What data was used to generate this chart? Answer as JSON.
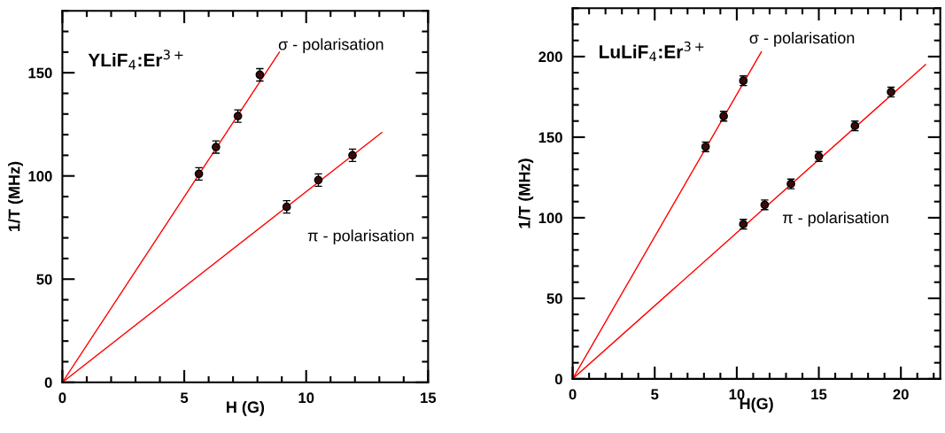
{
  "chart_data": [
    {
      "type": "scatter",
      "xlabel": "H (G)",
      "ylabel": "1/T (MHz)",
      "xlim": [
        0,
        15
      ],
      "ylim": [
        0,
        180
      ],
      "xticks": [
        0,
        5,
        10,
        15
      ],
      "yticks": [
        0,
        50,
        100,
        150
      ],
      "grid": false,
      "annotations": [
        "YLiF$_{4}$:Er$^{3+}$",
        "σ - polarisation",
        "π - polarisation"
      ],
      "series": [
        {
          "marker": "circle",
          "color": "#3a0a0a",
          "x": [
            5.6,
            6.3,
            7.2,
            8.1
          ],
          "values": [
            101,
            114,
            129,
            149
          ],
          "errors": [
            3,
            3,
            3,
            3
          ]
        },
        {
          "marker": "circle",
          "color": "#3a0a0a",
          "x": [
            9.2,
            10.5,
            11.9
          ],
          "values": [
            85,
            98,
            110
          ],
          "errors": [
            3,
            3,
            3
          ]
        },
        {
          "type": "line",
          "color": "#ff0000",
          "x": [
            0,
            8.9
          ],
          "values": [
            0,
            160
          ]
        },
        {
          "type": "line",
          "color": "#ff0000",
          "x": [
            0,
            13.1
          ],
          "values": [
            0,
            121
          ]
        }
      ]
    },
    {
      "type": "scatter",
      "xlabel": "H(G)",
      "ylabel": "1/T (MHz)",
      "xlim": [
        0,
        22.4
      ],
      "ylim": [
        0,
        230
      ],
      "xticks": [
        0,
        5,
        10,
        15,
        20
      ],
      "yticks": [
        0,
        50,
        100,
        150,
        200
      ],
      "grid": false,
      "annotations": [
        "LuLiF$_{4}$:Er$^{3+}$",
        "σ - polarisation",
        "π - polarisation"
      ],
      "series": [
        {
          "marker": "circle",
          "color": "#3a0a0a",
          "x": [
            8.1,
            9.2,
            10.4
          ],
          "values": [
            144,
            163,
            185
          ],
          "errors": [
            3,
            3,
            3
          ]
        },
        {
          "marker": "circle",
          "color": "#3a0a0a",
          "x": [
            10.4,
            11.7,
            13.3,
            15.0,
            17.2,
            19.4
          ],
          "values": [
            96,
            108,
            121,
            138,
            157,
            178
          ],
          "errors": [
            3,
            3,
            3,
            3,
            3,
            3
          ]
        },
        {
          "type": "line",
          "color": "#ff0000",
          "x": [
            0,
            11.5
          ],
          "values": [
            0,
            203
          ]
        },
        {
          "type": "line",
          "color": "#ff0000",
          "x": [
            0,
            21.5
          ],
          "values": [
            0,
            195
          ]
        }
      ]
    }
  ]
}
